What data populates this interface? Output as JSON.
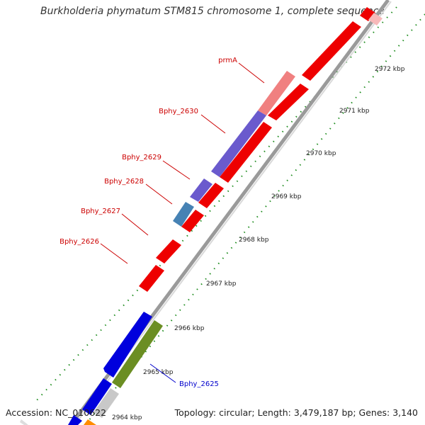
{
  "title": "Burkholderia phymatum STM815 chromosome 1, complete sequence",
  "accession": "Accession: NC_010622",
  "summary": "Topology: circular; Length: 3,479,187 bp; Genes: 3,140",
  "colors": {
    "backbone": "#8c8c8c",
    "tick": "#1e8c1e",
    "label_red": "#cc0000",
    "label_blue": "#0000cc"
  },
  "ticks": [
    {
      "label": "2964 kbp"
    },
    {
      "label": "2965 kbp"
    },
    {
      "label": "2966 kbp"
    },
    {
      "label": "2967 kbp"
    },
    {
      "label": "2968 kbp"
    },
    {
      "label": "2969 kbp"
    },
    {
      "label": "2970 kbp"
    },
    {
      "label": "2971 kbp"
    },
    {
      "label": "2972 kbp"
    }
  ],
  "gene_labels": [
    {
      "name": "prmA",
      "color": "#cc0000"
    },
    {
      "name": "Bphy_2630",
      "color": "#cc0000"
    },
    {
      "name": "Bphy_2629",
      "color": "#cc0000"
    },
    {
      "name": "Bphy_2628",
      "color": "#cc0000"
    },
    {
      "name": "Bphy_2627",
      "color": "#cc0000"
    },
    {
      "name": "Bphy_2626",
      "color": "#cc0000"
    },
    {
      "name": "Bphy_2625",
      "color": "#0000cc"
    }
  ]
}
